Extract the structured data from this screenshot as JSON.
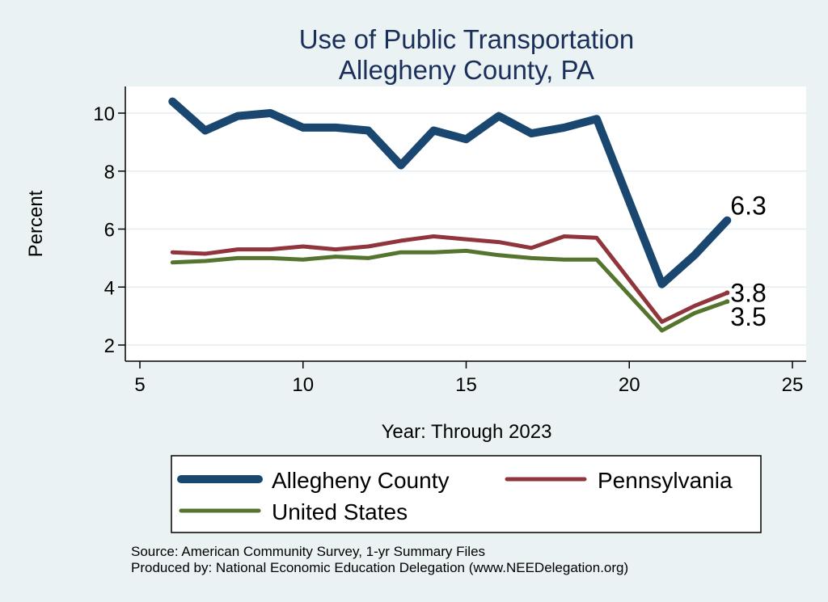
{
  "chart_data": {
    "type": "line",
    "title": "Use of Public Transportation",
    "subtitle": "Allegheny County, PA",
    "xlabel": "Year: Through 2023",
    "ylabel": "Percent",
    "xlim": [
      5,
      25
    ],
    "ylim": [
      1.7,
      10.9
    ],
    "xticks": [
      5,
      10,
      15,
      20,
      25
    ],
    "yticks": [
      2,
      4,
      6,
      8,
      10
    ],
    "grid": true,
    "legend_position": "bottom",
    "x": [
      6,
      7,
      8,
      9,
      10,
      11,
      12,
      13,
      14,
      15,
      16,
      17,
      18,
      19,
      21,
      22,
      23
    ],
    "series": [
      {
        "name": "Allegheny County",
        "color": "#1a476f",
        "values": [
          10.4,
          9.4,
          9.9,
          10.0,
          9.5,
          9.5,
          9.4,
          8.2,
          9.4,
          9.1,
          9.9,
          9.3,
          9.5,
          9.8,
          4.1,
          5.1,
          6.3
        ],
        "end_label": "6.3"
      },
      {
        "name": "Pennsylvania",
        "color": "#90353b",
        "values": [
          5.2,
          5.15,
          5.3,
          5.3,
          5.4,
          5.3,
          5.4,
          5.6,
          5.75,
          5.65,
          5.55,
          5.35,
          5.75,
          5.7,
          2.8,
          3.35,
          3.8
        ],
        "end_label": "3.8"
      },
      {
        "name": "United States",
        "color": "#55752f",
        "values": [
          4.85,
          4.9,
          5.0,
          5.0,
          4.95,
          5.05,
          5.0,
          5.2,
          5.2,
          5.25,
          5.1,
          5.0,
          4.95,
          4.95,
          2.5,
          3.1,
          3.5
        ],
        "end_label": "3.5"
      }
    ]
  },
  "notes": {
    "source": "Source: American Community Survey, 1-yr Summary Files",
    "produced": "Produced by: National Economic Education Delegation (www.NEEDelegation.org)"
  }
}
